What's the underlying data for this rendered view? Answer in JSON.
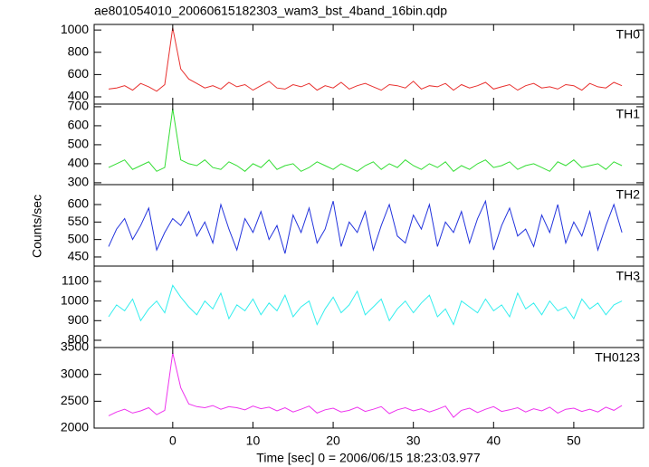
{
  "title": "ae801054010_20060615182303_wam3_bst_4band_16bin.qdp",
  "ylabel": "Counts/sec",
  "xlabel": "Time [sec] 0 = 2006/06/15 18:23:03.977",
  "chart_data": [
    {
      "type": "line",
      "title": "TH0",
      "color": "#e8302e",
      "x": [
        -8,
        -7,
        -6,
        -5,
        -4,
        -3,
        -2,
        -1,
        0,
        1,
        2,
        3,
        4,
        5,
        6,
        7,
        8,
        9,
        10,
        11,
        12,
        13,
        14,
        15,
        16,
        17,
        18,
        19,
        20,
        21,
        22,
        23,
        24,
        25,
        26,
        27,
        28,
        29,
        30,
        31,
        32,
        33,
        34,
        35,
        36,
        37,
        38,
        39,
        40,
        41,
        42,
        43,
        44,
        45,
        46,
        47,
        48,
        49,
        50,
        51,
        52,
        53,
        54,
        55,
        56
      ],
      "values": [
        470,
        480,
        500,
        460,
        520,
        490,
        450,
        510,
        1020,
        650,
        560,
        520,
        480,
        500,
        470,
        530,
        490,
        510,
        460,
        500,
        540,
        480,
        470,
        510,
        490,
        520,
        460,
        500,
        480,
        530,
        470,
        500,
        520,
        490,
        460,
        510,
        500,
        480,
        540,
        470,
        500,
        490,
        520,
        460,
        510,
        480,
        500,
        530,
        470,
        490,
        510,
        460,
        500,
        520,
        480,
        490,
        470,
        510,
        500,
        460,
        520,
        490,
        480,
        530,
        500
      ],
      "xlim": [
        -9.8,
        58.7
      ],
      "xticks": [
        0,
        10,
        20,
        30,
        40,
        50
      ],
      "ylim": [
        335,
        1050
      ],
      "yticks": [
        400,
        600,
        800,
        1000
      ]
    },
    {
      "type": "line",
      "title": "TH1",
      "color": "#33dd33",
      "x": [
        -8,
        -7,
        -6,
        -5,
        -4,
        -3,
        -2,
        -1,
        0,
        1,
        2,
        3,
        4,
        5,
        6,
        7,
        8,
        9,
        10,
        11,
        12,
        13,
        14,
        15,
        16,
        17,
        18,
        19,
        20,
        21,
        22,
        23,
        24,
        25,
        26,
        27,
        28,
        29,
        30,
        31,
        32,
        33,
        34,
        35,
        36,
        37,
        38,
        39,
        40,
        41,
        42,
        43,
        44,
        45,
        46,
        47,
        48,
        49,
        50,
        51,
        52,
        53,
        54,
        55,
        56
      ],
      "values": [
        380,
        400,
        420,
        370,
        390,
        410,
        360,
        380,
        690,
        420,
        400,
        390,
        420,
        380,
        370,
        410,
        390,
        360,
        400,
        380,
        420,
        370,
        390,
        400,
        360,
        380,
        410,
        390,
        370,
        400,
        380,
        360,
        390,
        410,
        370,
        400,
        380,
        420,
        390,
        370,
        400,
        380,
        410,
        360,
        390,
        370,
        400,
        420,
        380,
        390,
        410,
        370,
        390,
        400,
        380,
        360,
        410,
        390,
        420,
        380,
        390,
        400,
        370,
        410,
        390
      ],
      "xlim": [
        -9.8,
        58.7
      ],
      "xticks": [
        0,
        10,
        20,
        30,
        40,
        50
      ],
      "ylim": [
        290,
        714
      ],
      "yticks": [
        300,
        400,
        500,
        600,
        700
      ]
    },
    {
      "type": "line",
      "title": "TH2",
      "color": "#2233dd",
      "x": [
        -8,
        -7,
        -6,
        -5,
        -4,
        -3,
        -2,
        -1,
        0,
        1,
        2,
        3,
        4,
        5,
        6,
        7,
        8,
        9,
        10,
        11,
        12,
        13,
        14,
        15,
        16,
        17,
        18,
        19,
        20,
        21,
        22,
        23,
        24,
        25,
        26,
        27,
        28,
        29,
        30,
        31,
        32,
        33,
        34,
        35,
        36,
        37,
        38,
        39,
        40,
        41,
        42,
        43,
        44,
        45,
        46,
        47,
        48,
        49,
        50,
        51,
        52,
        53,
        54,
        55,
        56
      ],
      "values": [
        480,
        530,
        560,
        500,
        540,
        590,
        470,
        520,
        560,
        540,
        580,
        510,
        550,
        490,
        600,
        530,
        470,
        560,
        520,
        580,
        500,
        540,
        460,
        570,
        520,
        590,
        490,
        530,
        610,
        480,
        550,
        520,
        580,
        470,
        540,
        600,
        510,
        490,
        570,
        530,
        600,
        480,
        550,
        520,
        580,
        490,
        560,
        610,
        470,
        540,
        590,
        510,
        530,
        480,
        570,
        520,
        600,
        490,
        550,
        510,
        580,
        470,
        540,
        600,
        520
      ],
      "xlim": [
        -9.8,
        58.7
      ],
      "xticks": [
        0,
        10,
        20,
        30,
        40,
        50
      ],
      "ylim": [
        424,
        657
      ],
      "yticks": [
        450,
        500,
        550,
        600
      ]
    },
    {
      "type": "line",
      "title": "TH3",
      "color": "#33eeee",
      "x": [
        -8,
        -7,
        -6,
        -5,
        -4,
        -3,
        -2,
        -1,
        0,
        1,
        2,
        3,
        4,
        5,
        6,
        7,
        8,
        9,
        10,
        11,
        12,
        13,
        14,
        15,
        16,
        17,
        18,
        19,
        20,
        21,
        22,
        23,
        24,
        25,
        26,
        27,
        28,
        29,
        30,
        31,
        32,
        33,
        34,
        35,
        36,
        37,
        38,
        39,
        40,
        41,
        42,
        43,
        44,
        45,
        46,
        47,
        48,
        49,
        50,
        51,
        52,
        53,
        54,
        55,
        56
      ],
      "values": [
        920,
        980,
        950,
        1010,
        900,
        960,
        1000,
        940,
        1080,
        1020,
        970,
        930,
        1000,
        960,
        1040,
        910,
        980,
        950,
        1010,
        930,
        990,
        950,
        1030,
        920,
        970,
        1000,
        880,
        960,
        1020,
        940,
        980,
        1050,
        930,
        970,
        1010,
        900,
        960,
        1000,
        940,
        990,
        1030,
        920,
        960,
        880,
        1000,
        970,
        940,
        1010,
        950,
        980,
        920,
        1040,
        960,
        990,
        930,
        1000,
        950,
        970,
        910,
        1010,
        960,
        990,
        930,
        980,
        1000
      ],
      "xlim": [
        -9.8,
        58.7
      ],
      "xticks": [
        0,
        10,
        20,
        30,
        40,
        50
      ],
      "ylim": [
        763,
        1178
      ],
      "yticks": [
        800,
        900,
        1000,
        1100
      ]
    },
    {
      "type": "line",
      "title": "TH0123",
      "color": "#ee33ee",
      "x": [
        -8,
        -7,
        -6,
        -5,
        -4,
        -3,
        -2,
        -1,
        0,
        1,
        2,
        3,
        4,
        5,
        6,
        7,
        8,
        9,
        10,
        11,
        12,
        13,
        14,
        15,
        16,
        17,
        18,
        19,
        20,
        21,
        22,
        23,
        24,
        25,
        26,
        27,
        28,
        29,
        30,
        31,
        32,
        33,
        34,
        35,
        36,
        37,
        38,
        39,
        40,
        41,
        42,
        43,
        44,
        45,
        46,
        47,
        48,
        49,
        50,
        51,
        52,
        53,
        54,
        55,
        56
      ],
      "values": [
        2230,
        2300,
        2350,
        2280,
        2320,
        2380,
        2250,
        2330,
        3400,
        2750,
        2450,
        2400,
        2380,
        2420,
        2350,
        2400,
        2380,
        2340,
        2410,
        2360,
        2390,
        2320,
        2380,
        2300,
        2350,
        2410,
        2280,
        2340,
        2370,
        2300,
        2330,
        2390,
        2310,
        2350,
        2400,
        2270,
        2340,
        2380,
        2320,
        2360,
        2300,
        2350,
        2410,
        2200,
        2330,
        2370,
        2290,
        2350,
        2400,
        2310,
        2340,
        2380,
        2300,
        2360,
        2320,
        2390,
        2280,
        2350,
        2370,
        2310,
        2350,
        2300,
        2390,
        2330,
        2420
      ],
      "xlim": [
        -9.8,
        58.7
      ],
      "xticks": [
        0,
        10,
        20,
        30,
        40,
        50
      ],
      "ylim": [
        2000,
        3500
      ],
      "yticks": [
        2000,
        2500,
        3000,
        3500
      ]
    }
  ]
}
